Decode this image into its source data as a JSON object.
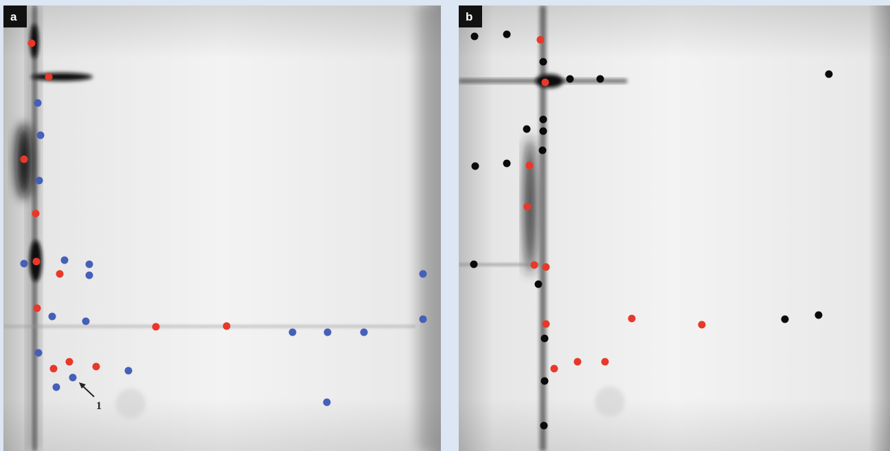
{
  "panels": [
    {
      "label": "a"
    },
    {
      "label": "b"
    }
  ],
  "annotation": "1"
}
